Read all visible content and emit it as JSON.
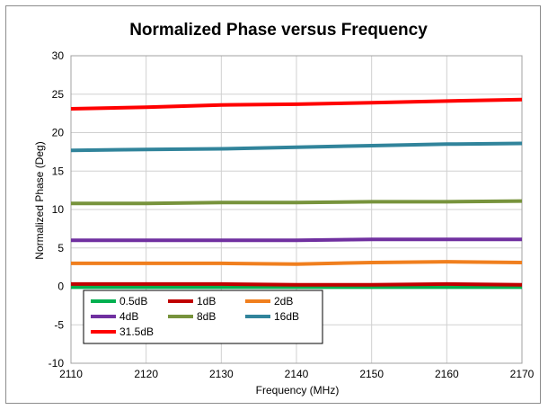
{
  "chart_data": {
    "type": "line",
    "title": "Normalized Phase versus Frequency",
    "xlabel": "Frequency (MHz)",
    "ylabel": "Normalized Phase (Deg)",
    "xlim": [
      2110,
      2170
    ],
    "ylim": [
      -10,
      30
    ],
    "xticks": [
      2110,
      2120,
      2130,
      2140,
      2150,
      2160,
      2170
    ],
    "yticks": [
      -10,
      -5,
      0,
      5,
      10,
      15,
      20,
      25,
      30
    ],
    "grid": true,
    "legend_position": "bottom-left inside",
    "x": [
      2110,
      2120,
      2130,
      2140,
      2150,
      2160,
      2170
    ],
    "series": [
      {
        "name": "0.5dB",
        "color": "#00b050",
        "values": [
          -0.1,
          -0.1,
          -0.1,
          -0.1,
          -0.1,
          -0.1,
          -0.1
        ]
      },
      {
        "name": "1dB",
        "color": "#c00000",
        "values": [
          0.3,
          0.3,
          0.3,
          0.2,
          0.2,
          0.3,
          0.2
        ]
      },
      {
        "name": "2dB",
        "color": "#f07f1e",
        "values": [
          3.0,
          3.0,
          3.0,
          2.9,
          3.1,
          3.2,
          3.1
        ]
      },
      {
        "name": "4dB",
        "color": "#7030a0",
        "values": [
          6.0,
          6.0,
          6.0,
          6.0,
          6.1,
          6.1,
          6.1
        ]
      },
      {
        "name": "8dB",
        "color": "#77933c",
        "values": [
          10.8,
          10.8,
          10.9,
          10.9,
          11.0,
          11.0,
          11.1
        ]
      },
      {
        "name": "16dB",
        "color": "#31849b",
        "values": [
          17.7,
          17.8,
          17.9,
          18.1,
          18.3,
          18.5,
          18.6
        ]
      },
      {
        "name": "31.5dB",
        "color": "#ff0000",
        "values": [
          23.1,
          23.3,
          23.6,
          23.7,
          23.9,
          24.1,
          24.3
        ]
      }
    ]
  }
}
